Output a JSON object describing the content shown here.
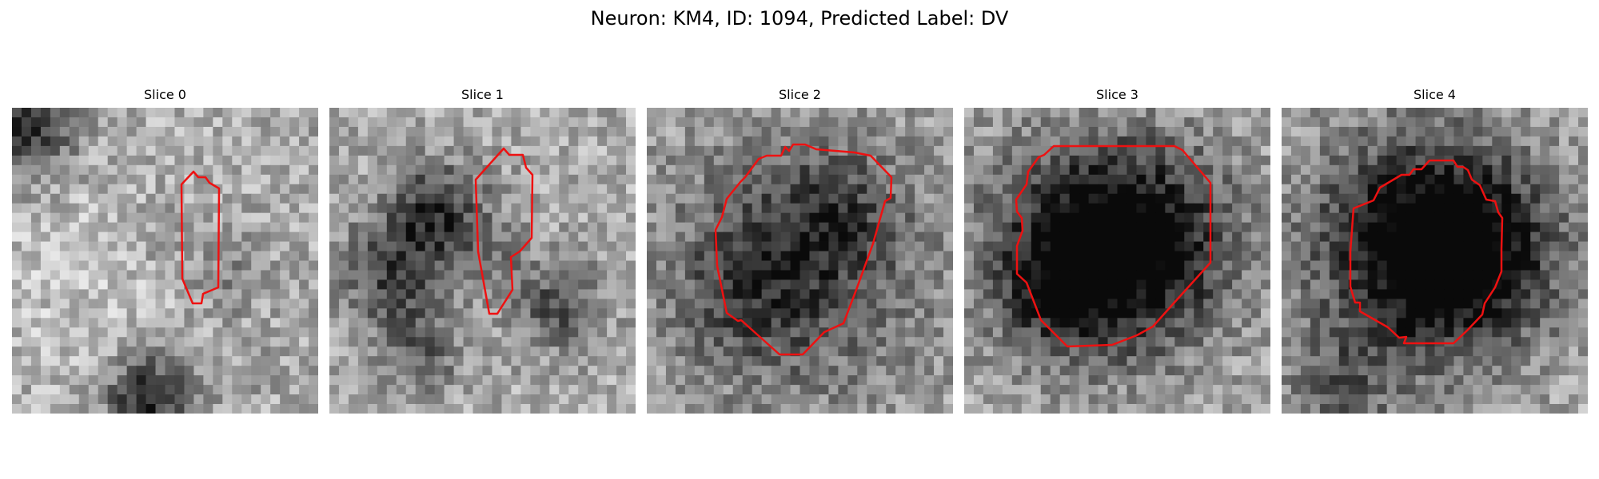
{
  "figure": {
    "title": "Neuron: KM4, ID: 1094, Predicted Label: DV",
    "contour_color": "#ee1111"
  },
  "panels": [
    {
      "title": "Slice 0"
    },
    {
      "title": "Slice 1"
    },
    {
      "title": "Slice 2"
    },
    {
      "title": "Slice 3"
    },
    {
      "title": "Slice 4"
    }
  ]
}
